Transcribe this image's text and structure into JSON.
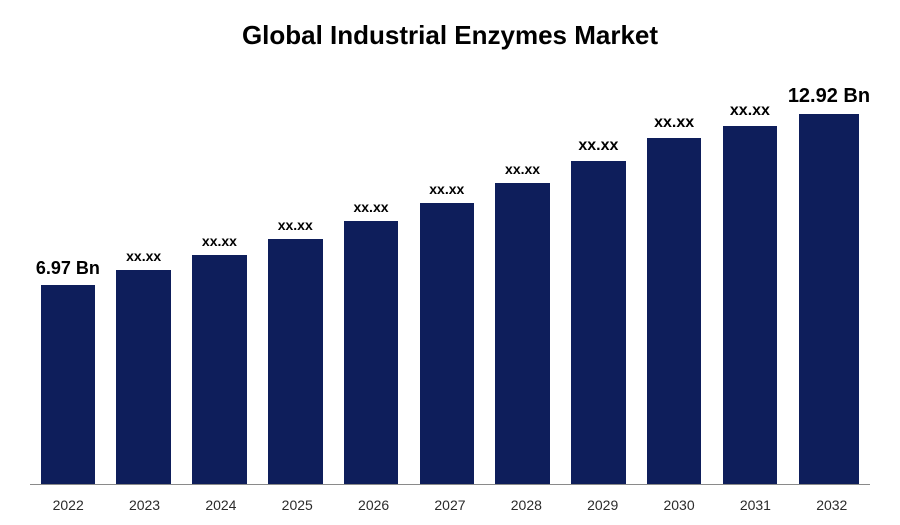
{
  "chart": {
    "type": "bar",
    "title": "Global Industrial Enzymes Market",
    "title_fontsize": 26,
    "title_fontweight": 700,
    "title_color": "#000000",
    "background_color": "#ffffff",
    "categories": [
      "2022",
      "2023",
      "2024",
      "2025",
      "2026",
      "2027",
      "2028",
      "2029",
      "2030",
      "2031",
      "2032"
    ],
    "values": [
      6.97,
      7.48,
      8.01,
      8.58,
      9.19,
      9.84,
      10.54,
      11.29,
      12.09,
      12.5,
      12.92
    ],
    "value_labels": [
      "6.97 Bn",
      "xx.xx",
      "xx.xx",
      "xx.xx",
      "xx.xx",
      "xx.xx",
      "xx.xx",
      "xx.xx",
      "xx.xx",
      "xx.xx",
      "12.92 Bn"
    ],
    "label_fontsizes": [
      18,
      14,
      14,
      14,
      14,
      14,
      14,
      16,
      16,
      16,
      20
    ],
    "bar_color": "#0e1e5b",
    "bar_width": 0.72,
    "ylim": [
      0,
      14.5
    ],
    "ymax_plot": 14.5,
    "axis_line_color": "#8a8a8a",
    "xaxis_label_fontsize": 14,
    "xaxis_label_color": "#2b2b2b"
  }
}
